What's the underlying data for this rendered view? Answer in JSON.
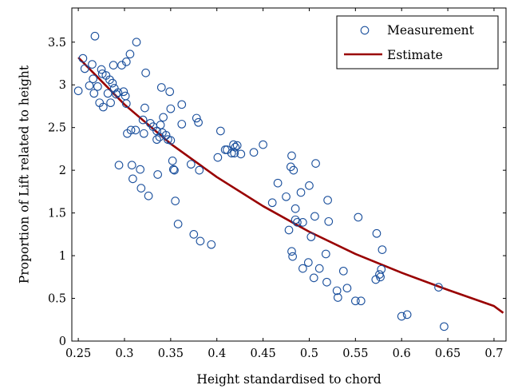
{
  "chart_data": {
    "type": "scatter",
    "xlabel": "Height standardised to chord",
    "ylabel": "Proportion of Lift related to height",
    "xlim": [
      0.243,
      0.713
    ],
    "ylim": [
      0,
      3.9
    ],
    "x_ticks": [
      0.25,
      0.3,
      0.35,
      0.4,
      0.45,
      0.5,
      0.55,
      0.6,
      0.65,
      0.7
    ],
    "x_tick_labels": [
      "0.25",
      "0.3",
      "0.35",
      "0.4",
      "0.45",
      "0.5",
      "0.55",
      "0.6",
      "0.65",
      "0.7"
    ],
    "y_ticks": [
      0,
      0.5,
      1,
      1.5,
      2,
      2.5,
      3,
      3.5
    ],
    "y_tick_labels": [
      "0",
      "0.5",
      "1",
      "1.5",
      "2",
      "2.5",
      "3",
      "3.5"
    ],
    "grid": false,
    "legend_position": "top-right",
    "colors": {
      "measurement": "#1a4f9c",
      "estimate": "#990000"
    },
    "series": [
      {
        "name": "Measurement",
        "kind": "scatter",
        "marker": "open-circle",
        "points": [
          [
            0.25,
            2.93
          ],
          [
            0.255,
            3.31
          ],
          [
            0.257,
            3.19
          ],
          [
            0.262,
            2.99
          ],
          [
            0.265,
            3.24
          ],
          [
            0.266,
            3.07
          ],
          [
            0.267,
            2.9
          ],
          [
            0.268,
            3.57
          ],
          [
            0.271,
            2.98
          ],
          [
            0.273,
            2.79
          ],
          [
            0.275,
            3.18
          ],
          [
            0.276,
            3.13
          ],
          [
            0.277,
            2.74
          ],
          [
            0.28,
            3.11
          ],
          [
            0.282,
            2.9
          ],
          [
            0.284,
            3.06
          ],
          [
            0.285,
            2.79
          ],
          [
            0.287,
            3.02
          ],
          [
            0.288,
            3.23
          ],
          [
            0.289,
            2.96
          ],
          [
            0.291,
            2.89
          ],
          [
            0.293,
            2.91
          ],
          [
            0.294,
            2.06
          ],
          [
            0.297,
            3.23
          ],
          [
            0.299,
            2.92
          ],
          [
            0.301,
            2.87
          ],
          [
            0.302,
            3.27
          ],
          [
            0.302,
            2.78
          ],
          [
            0.303,
            2.43
          ],
          [
            0.306,
            3.36
          ],
          [
            0.307,
            2.47
          ],
          [
            0.308,
            2.06
          ],
          [
            0.309,
            1.9
          ],
          [
            0.312,
            2.47
          ],
          [
            0.313,
            3.5
          ],
          [
            0.317,
            2.01
          ],
          [
            0.318,
            1.79
          ],
          [
            0.32,
            2.59
          ],
          [
            0.321,
            2.43
          ],
          [
            0.322,
            2.73
          ],
          [
            0.323,
            3.14
          ],
          [
            0.326,
            1.7
          ],
          [
            0.328,
            2.55
          ],
          [
            0.331,
            2.51
          ],
          [
            0.335,
            2.46
          ],
          [
            0.335,
            2.36
          ],
          [
            0.336,
            1.95
          ],
          [
            0.338,
            2.39
          ],
          [
            0.339,
            2.53
          ],
          [
            0.34,
            2.97
          ],
          [
            0.341,
            2.44
          ],
          [
            0.342,
            2.62
          ],
          [
            0.345,
            2.41
          ],
          [
            0.347,
            2.36
          ],
          [
            0.349,
            2.92
          ],
          [
            0.35,
            2.72
          ],
          [
            0.35,
            2.35
          ],
          [
            0.352,
            2.11
          ],
          [
            0.353,
            2.01
          ],
          [
            0.354,
            2.0
          ],
          [
            0.355,
            1.64
          ],
          [
            0.358,
            1.37
          ],
          [
            0.362,
            2.54
          ],
          [
            0.362,
            2.77
          ],
          [
            0.372,
            2.07
          ],
          [
            0.375,
            1.25
          ],
          [
            0.378,
            2.61
          ],
          [
            0.38,
            2.56
          ],
          [
            0.381,
            2.0
          ],
          [
            0.382,
            1.17
          ],
          [
            0.394,
            1.13
          ],
          [
            0.401,
            2.15
          ],
          [
            0.404,
            2.46
          ],
          [
            0.409,
            2.24
          ],
          [
            0.411,
            2.24
          ],
          [
            0.416,
            2.2
          ],
          [
            0.418,
            2.3
          ],
          [
            0.419,
            2.2
          ],
          [
            0.42,
            2.27
          ],
          [
            0.422,
            2.29
          ],
          [
            0.426,
            2.19
          ],
          [
            0.44,
            2.21
          ],
          [
            0.45,
            2.3
          ],
          [
            0.46,
            1.62
          ],
          [
            0.466,
            1.85
          ],
          [
            0.475,
            1.69
          ],
          [
            0.478,
            1.3
          ],
          [
            0.48,
            2.04
          ],
          [
            0.481,
            2.17
          ],
          [
            0.481,
            1.05
          ],
          [
            0.482,
            0.99
          ],
          [
            0.483,
            2.0
          ],
          [
            0.485,
            1.55
          ],
          [
            0.485,
            1.42
          ],
          [
            0.487,
            1.39
          ],
          [
            0.491,
            1.74
          ],
          [
            0.493,
            0.85
          ],
          [
            0.493,
            1.39
          ],
          [
            0.499,
            0.92
          ],
          [
            0.5,
            1.82
          ],
          [
            0.502,
            1.22
          ],
          [
            0.505,
            0.74
          ],
          [
            0.506,
            1.46
          ],
          [
            0.507,
            2.08
          ],
          [
            0.511,
            0.85
          ],
          [
            0.518,
            1.02
          ],
          [
            0.519,
            0.69
          ],
          [
            0.52,
            1.65
          ],
          [
            0.521,
            1.4
          ],
          [
            0.53,
            0.59
          ],
          [
            0.531,
            0.51
          ],
          [
            0.537,
            0.82
          ],
          [
            0.541,
            0.62
          ],
          [
            0.55,
            0.47
          ],
          [
            0.553,
            1.45
          ],
          [
            0.556,
            0.47
          ],
          [
            0.572,
            0.72
          ],
          [
            0.573,
            1.26
          ],
          [
            0.576,
            0.78
          ],
          [
            0.577,
            0.75
          ],
          [
            0.578,
            0.84
          ],
          [
            0.579,
            1.07
          ],
          [
            0.6,
            0.29
          ],
          [
            0.606,
            0.31
          ],
          [
            0.64,
            0.63
          ],
          [
            0.646,
            0.17
          ]
        ]
      },
      {
        "name": "Estimate",
        "kind": "line",
        "x": [
          0.25,
          0.3,
          0.35,
          0.4,
          0.45,
          0.5,
          0.55,
          0.6,
          0.65,
          0.7,
          0.71
        ],
        "y": [
          3.32,
          2.77,
          2.31,
          1.92,
          1.58,
          1.28,
          1.02,
          0.8,
          0.6,
          0.41,
          0.33
        ]
      }
    ]
  }
}
